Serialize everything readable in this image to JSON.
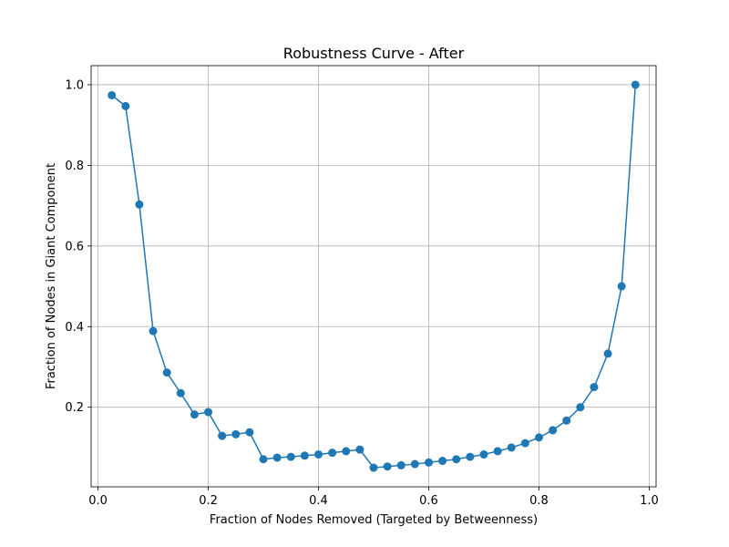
{
  "chart_data": {
    "type": "line",
    "title": "Robustness Curve - After",
    "xlabel": "Fraction of Nodes Removed (Targeted by Betweenness)",
    "ylabel": "Fraction of Nodes in Giant Component",
    "xlim": [
      -0.0125,
      1.0125
    ],
    "ylim": [
      0.0026,
      1.0474
    ],
    "grid": true,
    "legend": "none",
    "xticks": [
      0.0,
      0.2,
      0.4,
      0.6,
      0.8,
      1.0
    ],
    "xtick_labels": [
      "0.0",
      "0.2",
      "0.4",
      "0.6",
      "0.8",
      "1.0"
    ],
    "yticks": [
      0.2,
      0.4,
      0.6,
      0.8,
      1.0
    ],
    "ytick_labels": [
      "0.2",
      "0.4",
      "0.6",
      "0.8",
      "1.0"
    ],
    "series_color": "#1f77b4",
    "grid_color": "#b0b0b0",
    "series": [
      {
        "x": [
          0.025,
          0.05,
          0.075,
          0.1,
          0.125,
          0.15,
          0.175,
          0.2,
          0.225,
          0.25,
          0.275,
          0.3,
          0.325,
          0.35,
          0.375,
          0.4,
          0.425,
          0.45,
          0.475,
          0.5,
          0.525,
          0.55,
          0.575,
          0.6,
          0.625,
          0.65,
          0.675,
          0.7,
          0.725,
          0.75,
          0.775,
          0.8,
          0.825,
          0.85,
          0.875,
          0.9,
          0.925,
          0.95,
          0.975
        ],
        "values": [
          0.974,
          0.947,
          0.703,
          0.389,
          0.286,
          0.235,
          0.182,
          0.188,
          0.129,
          0.133,
          0.138,
          0.071,
          0.075,
          0.077,
          0.08,
          0.083,
          0.087,
          0.091,
          0.095,
          0.05,
          0.053,
          0.056,
          0.059,
          0.063,
          0.067,
          0.071,
          0.077,
          0.083,
          0.091,
          0.1,
          0.111,
          0.125,
          0.143,
          0.167,
          0.2,
          0.25,
          0.333,
          0.5,
          1.0
        ]
      }
    ]
  }
}
